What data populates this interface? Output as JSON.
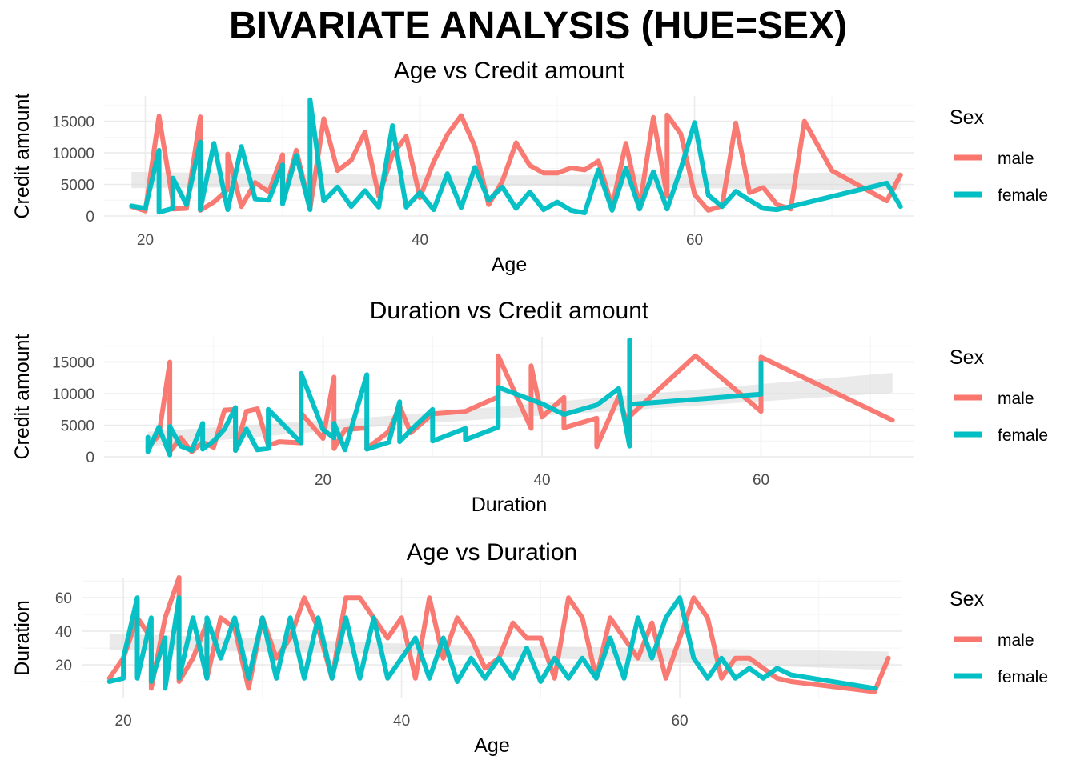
{
  "figure": {
    "title": "BIVARIATE ANALYSIS (HUE=SEX)"
  },
  "colors": {
    "male": "#F8766D",
    "female": "#00BFC4",
    "smooth_band": "#d9d9d9"
  },
  "legend": {
    "title": "Sex",
    "entries": [
      "male",
      "female"
    ]
  },
  "chart_data": [
    {
      "type": "line",
      "title": "Age vs Credit amount",
      "xlabel": "Age",
      "ylabel": "Credit amount",
      "xlim": [
        17,
        76
      ],
      "ylim": [
        0,
        19000
      ],
      "xticks": [
        20,
        40,
        60
      ],
      "yticks": [
        0,
        5000,
        10000,
        15000
      ],
      "grid": true,
      "legend_position": "right",
      "series": [
        {
          "name": "male",
          "x": [
            19,
            20,
            21,
            22,
            22,
            23,
            24,
            24,
            25,
            26,
            26,
            27,
            28,
            29,
            30,
            30,
            31,
            32,
            33,
            34,
            35,
            36,
            37,
            38,
            39,
            40,
            41,
            42,
            43,
            44,
            45,
            46,
            47,
            48,
            49,
            50,
            51,
            52,
            53,
            54,
            55,
            56,
            57,
            58,
            58,
            59,
            60,
            61,
            62,
            63,
            64,
            65,
            66,
            67,
            68,
            70,
            74,
            75
          ],
          "y": [
            1500,
            800,
            15800,
            2400,
            1100,
            1200,
            15700,
            900,
            2200,
            4200,
            9800,
            1500,
            5300,
            3800,
            9700,
            2200,
            10400,
            1200,
            15400,
            7200,
            8800,
            13300,
            3100,
            9700,
            12600,
            2900,
            8600,
            12900,
            15900,
            11000,
            1800,
            5500,
            11600,
            8000,
            6800,
            6800,
            7600,
            7300,
            8700,
            1500,
            11500,
            1400,
            15600,
            3100,
            16000,
            13000,
            3400,
            900,
            1600,
            14700,
            3700,
            4500,
            1800,
            1100,
            15000,
            7200,
            2400,
            6500
          ]
        },
        {
          "name": "female",
          "x": [
            19,
            20,
            21,
            21,
            22,
            22,
            23,
            24,
            24,
            25,
            26,
            27,
            28,
            29,
            30,
            30,
            31,
            32,
            32,
            33,
            34,
            35,
            36,
            37,
            38,
            39,
            40,
            41,
            42,
            43,
            44,
            45,
            46,
            47,
            48,
            49,
            50,
            51,
            52,
            53,
            54,
            55,
            56,
            57,
            58,
            59,
            60,
            61,
            62,
            63,
            64,
            65,
            66,
            67,
            74,
            75
          ],
          "y": [
            1600,
            1200,
            10400,
            600,
            1200,
            6000,
            1800,
            11700,
            1000,
            11500,
            1000,
            11000,
            2700,
            2500,
            8100,
            1900,
            9600,
            1000,
            18400,
            2400,
            4600,
            1500,
            4000,
            1400,
            14300,
            1400,
            3700,
            1000,
            6700,
            1300,
            7700,
            2500,
            4600,
            1200,
            3800,
            1000,
            2200,
            900,
            500,
            7300,
            900,
            7600,
            1100,
            7000,
            1100,
            7500,
            14800,
            3300,
            1500,
            3900,
            2500,
            1200,
            1000,
            1500,
            5200,
            1500
          ]
        }
      ]
    },
    {
      "type": "line",
      "title": "Duration vs Credit amount",
      "xlabel": "Duration",
      "ylabel": "Credit amount",
      "xlim": [
        0,
        74
      ],
      "ylim": [
        0,
        19000
      ],
      "xticks": [
        20,
        40,
        60
      ],
      "yticks": [
        0,
        5000,
        10000,
        15000
      ],
      "grid": true,
      "legend_position": "right",
      "series": [
        {
          "name": "male",
          "x": [
            4,
            5,
            6,
            6,
            7,
            8,
            9,
            10,
            11,
            12,
            12,
            13,
            14,
            15,
            16,
            18,
            18,
            20,
            21,
            21,
            22,
            24,
            24,
            26,
            27,
            28,
            30,
            33,
            36,
            36,
            39,
            39,
            40,
            42,
            42,
            45,
            45,
            47,
            48,
            48,
            54,
            60,
            60,
            72
          ],
          "y": [
            1500,
            3400,
            15000,
            800,
            3000,
            800,
            2300,
            1500,
            7400,
            7500,
            1000,
            7200,
            7600,
            1800,
            2400,
            2200,
            6900,
            2900,
            12600,
            1300,
            4300,
            4600,
            1300,
            4000,
            8000,
            3800,
            6800,
            7200,
            9500,
            16000,
            4500,
            14400,
            6300,
            9400,
            4600,
            6100,
            1600,
            9500,
            4200,
            6400,
            16000,
            7200,
            15800,
            5800
          ]
        },
        {
          "name": "female",
          "x": [
            4,
            4,
            5,
            6,
            6,
            7,
            8,
            9,
            9,
            10,
            11,
            12,
            12,
            13,
            14,
            15,
            15,
            18,
            18,
            20,
            21,
            21,
            22,
            24,
            24,
            26,
            27,
            27,
            28,
            30,
            30,
            33,
            33,
            36,
            36,
            40,
            42,
            45,
            47,
            48,
            48,
            48,
            60,
            60
          ],
          "y": [
            3100,
            800,
            4700,
            300,
            4800,
            1700,
            1000,
            5300,
            1200,
            2500,
            4400,
            7800,
            1000,
            4400,
            1100,
            1300,
            7500,
            2200,
            13200,
            4300,
            3000,
            5300,
            1100,
            13000,
            1200,
            2300,
            8700,
            2400,
            4200,
            7500,
            2500,
            4500,
            2700,
            4700,
            11000,
            8400,
            6700,
            8200,
            10800,
            1700,
            18500,
            8300,
            9900,
            14900
          ]
        }
      ]
    },
    {
      "type": "line",
      "title": "Age vs Duration",
      "xlabel": "Age",
      "ylabel": "Duration",
      "xlim": [
        17,
        76
      ],
      "ylim": [
        0,
        72
      ],
      "xticks": [
        20,
        40,
        60
      ],
      "yticks": [
        20,
        40,
        60
      ],
      "grid": true,
      "legend_position": "right",
      "series": [
        {
          "name": "male",
          "x": [
            19,
            20,
            21,
            22,
            22,
            23,
            24,
            24,
            25,
            26,
            26,
            27,
            28,
            29,
            30,
            31,
            32,
            33,
            34,
            35,
            36,
            37,
            38,
            39,
            40,
            41,
            42,
            43,
            44,
            45,
            46,
            47,
            48,
            49,
            50,
            51,
            52,
            53,
            54,
            55,
            56,
            57,
            58,
            59,
            60,
            61,
            62,
            63,
            64,
            65,
            66,
            67,
            68,
            70,
            74,
            75
          ],
          "y": [
            12,
            24,
            48,
            36,
            6,
            48,
            72,
            10,
            24,
            45,
            12,
            48,
            42,
            6,
            48,
            24,
            36,
            60,
            42,
            12,
            60,
            60,
            48,
            36,
            48,
            12,
            60,
            24,
            48,
            36,
            18,
            24,
            45,
            36,
            36,
            12,
            60,
            48,
            12,
            48,
            36,
            24,
            45,
            12,
            36,
            60,
            48,
            12,
            24,
            24,
            18,
            12,
            10,
            8,
            4,
            24
          ]
        },
        {
          "name": "female",
          "x": [
            19,
            20,
            20,
            21,
            21,
            22,
            22,
            23,
            23,
            24,
            24,
            25,
            26,
            26,
            27,
            28,
            29,
            30,
            31,
            32,
            33,
            34,
            35,
            36,
            37,
            38,
            39,
            40,
            41,
            42,
            43,
            44,
            45,
            46,
            47,
            48,
            49,
            50,
            51,
            52,
            53,
            54,
            55,
            56,
            57,
            58,
            59,
            60,
            61,
            62,
            63,
            64,
            65,
            66,
            67,
            68,
            74
          ],
          "y": [
            10,
            12,
            24,
            60,
            12,
            48,
            10,
            36,
            6,
            60,
            12,
            48,
            12,
            48,
            24,
            48,
            12,
            48,
            12,
            48,
            12,
            48,
            12,
            48,
            12,
            48,
            12,
            24,
            36,
            12,
            36,
            10,
            24,
            12,
            24,
            12,
            30,
            10,
            24,
            12,
            24,
            12,
            36,
            12,
            48,
            24,
            48,
            60,
            24,
            12,
            24,
            12,
            18,
            12,
            18,
            14,
            6
          ]
        }
      ]
    }
  ]
}
